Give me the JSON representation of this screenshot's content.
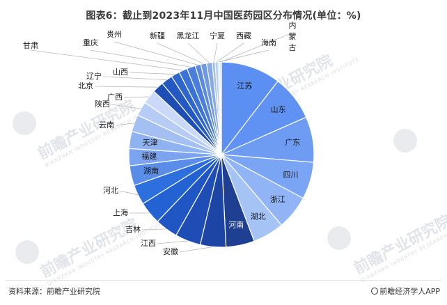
{
  "header": {
    "title": "图表6：截止到2023年11月中国医药园区分布情况(单位：%)"
  },
  "footer": {
    "source": "资料来源：前瞻产业研究院",
    "brand": "前瞻经济学人APP"
  },
  "watermark": {
    "text": "前瞻产业研究院",
    "sub": "QIANZHAN INDUSTRY RESEARCH INSTITUTE"
  },
  "chart_data": {
    "type": "pie",
    "title": "图表6：截止到2023年11月中国医药园区分布情况(单位：%)",
    "start_angle_deg": 0,
    "direction": "clockwise",
    "slices": [
      {
        "label": "江苏",
        "value": 10.5,
        "color": "#5b8ff2",
        "label_inside": true
      },
      {
        "label": "山东",
        "value": 8.0,
        "color": "#5f92f2",
        "label_inside": true
      },
      {
        "label": "广东",
        "value": 8.0,
        "color": "#6f9cf3",
        "label_inside": true
      },
      {
        "label": "四川",
        "value": 6.5,
        "color": "#7aa4f4",
        "label_inside": true
      },
      {
        "label": "浙江",
        "value": 6.0,
        "color": "#90b4f5",
        "label_inside": true
      },
      {
        "label": "湖北",
        "value": 5.5,
        "color": "#a6c3f6",
        "label_inside": true
      },
      {
        "label": "河南",
        "value": 5.0,
        "color": "#1f3f93",
        "label_inside": true
      },
      {
        "label": "安徽",
        "value": 4.5,
        "color": "#1d45a6",
        "label_inside": false
      },
      {
        "label": "江西",
        "value": 4.5,
        "color": "#1e4db5",
        "label_inside": false
      },
      {
        "label": "吉林",
        "value": 4.0,
        "color": "#1f56c4",
        "label_inside": false
      },
      {
        "label": "上海",
        "value": 4.0,
        "color": "#2262d2",
        "label_inside": false
      },
      {
        "label": "河北",
        "value": 3.5,
        "color": "#2d6fdc",
        "label_inside": false
      },
      {
        "label": "湖南",
        "value": 3.5,
        "color": "#5a8de8",
        "label_inside": true
      },
      {
        "label": "福建",
        "value": 3.0,
        "color": "#7ba3ee",
        "label_inside": true
      },
      {
        "label": "天津",
        "value": 3.0,
        "color": "#8fb2f1",
        "label_inside": true
      },
      {
        "label": "云南",
        "value": 3.0,
        "color": "#a4c0f3",
        "label_inside": false
      },
      {
        "label": "陕西",
        "value": 2.5,
        "color": "#b7ccf5",
        "label_inside": false
      },
      {
        "label": "广西",
        "value": 2.5,
        "color": "#c9d9f7",
        "label_inside": false
      },
      {
        "label": "北京",
        "value": 2.0,
        "color": "#1c4eb3",
        "label_inside": false
      },
      {
        "label": "辽宁",
        "value": 2.0,
        "color": "#2459c1",
        "label_inside": false
      },
      {
        "label": "山西",
        "value": 1.5,
        "color": "#2f66cc",
        "label_inside": false
      },
      {
        "label": "甘肃",
        "value": 1.5,
        "color": "#3b72d6",
        "label_inside": false
      },
      {
        "label": "重庆",
        "value": 1.5,
        "color": "#4a7edc",
        "label_inside": false
      },
      {
        "label": "贵州",
        "value": 1.0,
        "color": "#5b8ae0",
        "label_inside": false
      },
      {
        "label": "新疆",
        "value": 1.0,
        "color": "#6f98e4",
        "label_inside": false
      },
      {
        "label": "黑龙江",
        "value": 1.0,
        "color": "#87aae8",
        "label_inside": false
      },
      {
        "label": "宁夏",
        "value": 0.5,
        "color": "#9fbbeb",
        "label_inside": false
      },
      {
        "label": "西藏",
        "value": 0.5,
        "color": "#b5caef",
        "label_inside": false
      },
      {
        "label": "海南",
        "value": 0.3,
        "color": "#c8d7f2",
        "label_inside": false
      },
      {
        "label": "内蒙古",
        "value": 0.3,
        "color": "#d8e3f5",
        "label_inside": false
      }
    ]
  }
}
